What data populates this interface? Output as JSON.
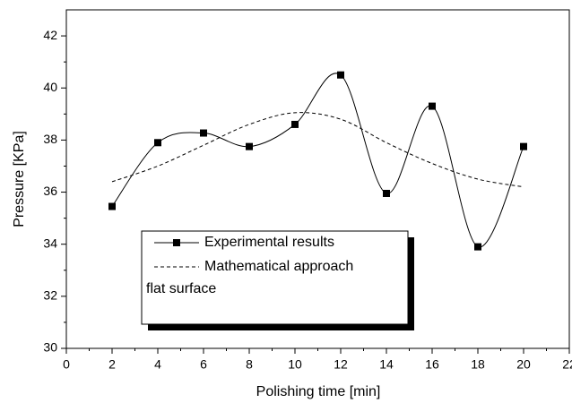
{
  "chart_data": {
    "type": "line",
    "x_label": "Polishing time [min]",
    "y_label": "Pressure  [KPa]",
    "x": [
      2,
      4,
      6,
      8,
      10,
      12,
      14,
      16,
      18,
      20
    ],
    "series": [
      {
        "name": "Experimental results",
        "color": "#000000",
        "style": "smooth-markers",
        "values": [
          35.45,
          37.9,
          38.27,
          37.75,
          38.6,
          40.5,
          35.95,
          39.3,
          33.9,
          37.75
        ]
      },
      {
        "name": "Mathematical approach",
        "color": "#000000",
        "style": "dashed",
        "values": [
          36.4,
          37.0,
          37.8,
          38.6,
          39.05,
          38.8,
          37.9,
          37.1,
          36.5,
          36.2
        ]
      }
    ],
    "legend_note": "flat surface",
    "xlim": [
      0,
      22
    ],
    "ylim": [
      30,
      43
    ],
    "xticks": [
      0,
      2,
      4,
      6,
      8,
      10,
      12,
      14,
      16,
      18,
      20,
      22
    ],
    "yticks": [
      30,
      32,
      34,
      36,
      38,
      40,
      42
    ],
    "grid": false
  }
}
